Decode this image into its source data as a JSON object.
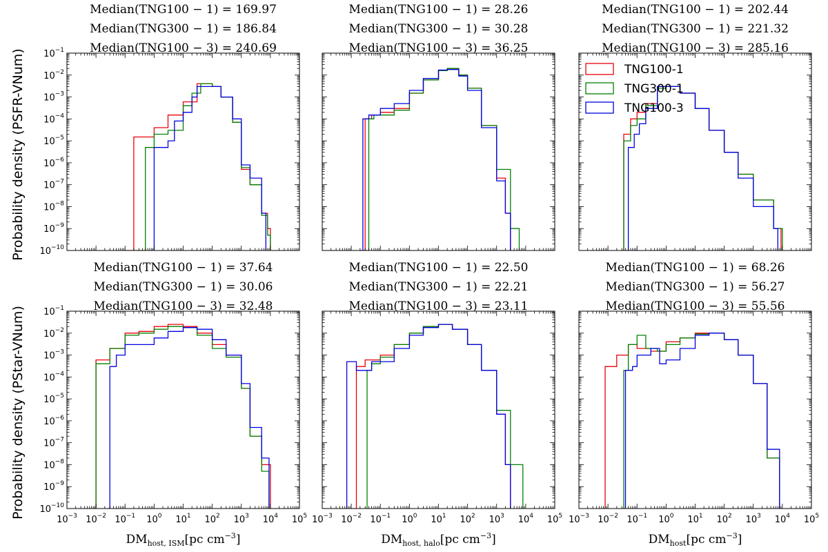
{
  "chart_data": {
    "type": "histogram-step",
    "figure_layout": "2 rows x 3 columns",
    "x_scale": "log",
    "y_scale": "log",
    "xlim": [
      0.001,
      100000
    ],
    "ylim": [
      1e-10,
      0.1
    ],
    "x_tick_labels": [
      "10^-3",
      "10^-2",
      "10^-1",
      "10^0",
      "10^1",
      "10^2",
      "10^3",
      "10^4",
      "10^5"
    ],
    "y_tick_labels": [
      "10^-10",
      "10^-9",
      "10^-8",
      "10^-7",
      "10^-6",
      "10^-5",
      "10^-4",
      "10^-3",
      "10^-2",
      "10^-1"
    ],
    "series_names": [
      "TNG100-1",
      "TNG300-1",
      "TNG100-3"
    ],
    "series_colors": [
      "#e8000b",
      "#008000",
      "#0000e0"
    ],
    "legend": {
      "placement": "top-left of top-right panel",
      "entries": [
        "TNG100-1",
        "TNG300-1",
        "TNG100-3"
      ]
    },
    "row_ylabels": [
      "Probability density (PSFR-VNum)",
      "Probability density (PStar-VNum)"
    ],
    "col_xlabels": [
      {
        "main": "DM",
        "sub": "host, ISM",
        "unit": "[pc cm",
        "unit_exp": "−3",
        "unit_close": "]"
      },
      {
        "main": "DM",
        "sub": "host, halo",
        "unit": "[pc cm",
        "unit_exp": "−3",
        "unit_close": "]"
      },
      {
        "main": "DM",
        "sub": "host",
        "unit": "[pc cm",
        "unit_exp": "−3",
        "unit_close": "]"
      }
    ],
    "panels": [
      {
        "id": "psfr-ism",
        "medians": [
          "Median(TNG100 − 1) = 169.97",
          "Median(TNG300 − 1) = 186.84",
          "Median(TNG100 − 3) = 240.69"
        ],
        "series": [
          {
            "name": "TNG100-1",
            "x": [
              0.1,
              0.2,
              1,
              3,
              10,
              30,
              50,
              100,
              200,
              500,
              1000,
              2000,
              5000,
              8000,
              10000
            ],
            "y": [
              1e-10,
              1.5e-05,
              4e-05,
              0.00015,
              0.0006,
              0.004,
              0.004,
              0.003,
              0.001,
              7e-05,
              5e-07,
              1e-07,
              5e-09,
              1e-09,
              1e-10
            ]
          },
          {
            "name": "TNG300-1",
            "x": [
              0.2,
              0.5,
              1,
              3,
              10,
              20,
              40,
              100,
              200,
              500,
              1000,
              2000,
              5000,
              8000,
              10000
            ],
            "y": [
              1e-10,
              5e-06,
              2e-05,
              3e-05,
              0.0004,
              0.0015,
              0.004,
              0.003,
              0.001,
              7e-05,
              6e-07,
              1e-07,
              4e-09,
              5e-10,
              1e-10
            ]
          },
          {
            "name": "TNG100-3",
            "x": [
              0.8,
              1,
              3,
              5,
              10,
              20,
              30,
              50,
              100,
              200,
              500,
              1000,
              2000,
              5000,
              7000
            ],
            "y": [
              1e-10,
              5e-06,
              1e-05,
              8e-05,
              0.0002,
              0.001,
              0.003,
              0.003,
              0.003,
              0.001,
              0.0001,
              8e-07,
              2e-07,
              5e-09,
              1e-10
            ]
          }
        ]
      },
      {
        "id": "psfr-halo",
        "medians": [
          "Median(TNG100 − 1) = 28.26",
          "Median(TNG300 − 1) = 30.28",
          "Median(TNG100 − 3) = 36.25"
        ],
        "series": [
          {
            "name": "TNG100-1",
            "x": [
              0.025,
              0.03,
              0.05,
              0.1,
              0.3,
              1,
              3,
              10,
              20,
              50,
              100,
              300,
              1000,
              2000,
              3000
            ],
            "y": [
              1e-10,
              0.0001,
              0.00015,
              0.0002,
              0.0003,
              0.0015,
              0.006,
              0.016,
              0.02,
              0.01,
              0.0025,
              5e-05,
              2e-07,
              5e-09,
              1e-10
            ]
          },
          {
            "name": "TNG300-1",
            "x": [
              0.03,
              0.04,
              0.06,
              0.1,
              0.3,
              1,
              3,
              10,
              20,
              50,
              100,
              300,
              1000,
              3000,
              6000
            ],
            "y": [
              1e-10,
              0.0001,
              0.00015,
              0.00015,
              0.00025,
              0.0015,
              0.006,
              0.016,
              0.02,
              0.01,
              0.0025,
              5e-05,
              5e-07,
              1e-09,
              1e-10
            ]
          },
          {
            "name": "TNG100-3",
            "x": [
              0.02,
              0.025,
              0.04,
              0.1,
              0.3,
              1,
              3,
              10,
              20,
              50,
              100,
              300,
              1000,
              2000,
              3000
            ],
            "y": [
              1e-10,
              0.0001,
              0.00015,
              0.0003,
              0.0005,
              0.002,
              0.007,
              0.017,
              0.018,
              0.009,
              0.002,
              4e-05,
              1.5e-07,
              5e-09,
              1e-10
            ]
          }
        ]
      },
      {
        "id": "psfr-host",
        "medians": [
          "Median(TNG100 − 1) = 202.44",
          "Median(TNG300 − 1) = 221.32",
          "Median(TNG100 − 3) = 285.16"
        ],
        "series": [
          {
            "name": "TNG100-1",
            "x": [
              0.03,
              0.035,
              0.06,
              0.1,
              0.2,
              0.5,
              1,
              3,
              10,
              30,
              100,
              300,
              1000,
              5000,
              9000
            ],
            "y": [
              1e-10,
              2e-05,
              0.0001,
              0.0002,
              0.0005,
              0.003,
              0.003,
              0.0015,
              0.0003,
              3e-05,
              3e-06,
              3e-07,
              2e-08,
              1e-09,
              1e-10
            ]
          },
          {
            "name": "TNG300-1",
            "x": [
              0.03,
              0.035,
              0.06,
              0.1,
              0.2,
              0.5,
              1,
              3,
              10,
              30,
              100,
              300,
              1000,
              5000,
              10000
            ],
            "y": [
              1e-10,
              1e-05,
              5e-05,
              0.0001,
              0.0004,
              0.0025,
              0.003,
              0.0015,
              0.0003,
              3e-05,
              3e-06,
              3e-07,
              2e-08,
              1e-09,
              1e-10
            ]
          },
          {
            "name": "TNG100-3",
            "x": [
              0.04,
              0.05,
              0.08,
              0.12,
              0.2,
              0.5,
              1,
              3,
              10,
              30,
              100,
              300,
              1000,
              5000,
              7000
            ],
            "y": [
              1e-10,
              5e-06,
              2e-05,
              6e-05,
              0.0003,
              0.003,
              0.003,
              0.0015,
              0.0003,
              3e-05,
              3e-06,
              2e-07,
              1e-08,
              1e-09,
              1e-10
            ]
          }
        ]
      },
      {
        "id": "pstar-ism",
        "medians": [
          "Median(TNG100 − 1) = 37.64",
          "Median(TNG300 − 1) = 30.06",
          "Median(TNG100 − 3) = 32.48"
        ],
        "series": [
          {
            "name": "TNG100-1",
            "x": [
              0.008,
              0.01,
              0.03,
              0.1,
              0.3,
              1,
              3,
              10,
              30,
              100,
              300,
              1000,
              2000,
              5000,
              10000
            ],
            "y": [
              1e-10,
              0.0006,
              0.002,
              0.01,
              0.012,
              0.02,
              0.025,
              0.02,
              0.01,
              0.003,
              0.001,
              3e-05,
              2e-07,
              1e-08,
              1e-10
            ]
          },
          {
            "name": "TNG300-1",
            "x": [
              0.008,
              0.01,
              0.03,
              0.1,
              0.3,
              1,
              3,
              10,
              30,
              100,
              300,
              1000,
              2000,
              5000,
              9000
            ],
            "y": [
              1e-10,
              0.0004,
              0.002,
              0.008,
              0.01,
              0.015,
              0.02,
              0.018,
              0.008,
              0.002,
              0.0008,
              3e-05,
              2e-07,
              5e-09,
              1e-10
            ]
          },
          {
            "name": "TNG100-3",
            "x": [
              0.025,
              0.03,
              0.05,
              0.1,
              0.3,
              1,
              3,
              10,
              30,
              100,
              300,
              1000,
              2000,
              5000,
              9000
            ],
            "y": [
              1e-10,
              0.0003,
              0.001,
              0.003,
              0.003,
              0.006,
              0.012,
              0.018,
              0.015,
              0.005,
              0.001,
              5e-05,
              5e-07,
              2e-08,
              1e-10
            ]
          }
        ]
      },
      {
        "id": "pstar-halo",
        "medians": [
          "Median(TNG100 − 1) = 22.50",
          "Median(TNG300 − 1) = 22.21",
          "Median(TNG100 − 3) = 23.11"
        ],
        "series": [
          {
            "name": "TNG100-1",
            "x": [
              0.012,
              0.015,
              0.03,
              0.1,
              0.3,
              1,
              3,
              10,
              30,
              100,
              300,
              1000,
              2000,
              3000
            ],
            "y": [
              1e-10,
              0.0003,
              0.0006,
              0.001,
              0.003,
              0.01,
              0.02,
              0.025,
              0.015,
              0.003,
              0.0002,
              2e-06,
              1e-08,
              1e-10
            ]
          },
          {
            "name": "TNG300-1",
            "x": [
              0.03,
              0.035,
              0.05,
              0.1,
              0.3,
              1,
              3,
              10,
              30,
              100,
              300,
              1000,
              3000,
              8000
            ],
            "y": [
              1e-10,
              0.0002,
              0.0004,
              0.0008,
              0.003,
              0.01,
              0.02,
              0.025,
              0.015,
              0.003,
              0.0002,
              3e-06,
              1e-08,
              1e-10
            ]
          },
          {
            "name": "TNG100-3",
            "x": [
              0.006,
              0.007,
              0.015,
              0.05,
              0.3,
              1,
              3,
              10,
              30,
              100,
              300,
              1000,
              2000,
              3000
            ],
            "y": [
              1e-10,
              0.0005,
              0.0002,
              0.0005,
              0.002,
              0.008,
              0.018,
              0.025,
              0.015,
              0.003,
              0.0002,
              2e-06,
              1e-08,
              1e-10
            ]
          }
        ]
      },
      {
        "id": "pstar-host",
        "medians": [
          "Median(TNG100 − 1) = 68.26",
          "Median(TNG300 − 1) = 56.27",
          "Median(TNG100 − 3) = 55.56"
        ],
        "series": [
          {
            "name": "TNG100-1",
            "x": [
              0.007,
              0.008,
              0.02,
              0.05,
              0.1,
              0.3,
              1,
              3,
              10,
              30,
              100,
              300,
              1000,
              3000,
              8000
            ],
            "y": [
              1e-10,
              0.0003,
              0.001,
              0.003,
              0.002,
              0.0015,
              0.004,
              0.006,
              0.01,
              0.01,
              0.005,
              0.001,
              5e-05,
              2e-08,
              1e-10
            ]
          },
          {
            "name": "TNG300-1",
            "x": [
              0.03,
              0.035,
              0.05,
              0.1,
              0.2,
              0.5,
              1,
              3,
              10,
              30,
              100,
              300,
              1000,
              3000,
              8000
            ],
            "y": [
              1e-10,
              0.0002,
              0.003,
              0.008,
              0.002,
              0.0015,
              0.003,
              0.006,
              0.009,
              0.01,
              0.005,
              0.001,
              5e-05,
              2e-08,
              1e-10
            ]
          },
          {
            "name": "TNG100-3",
            "x": [
              0.035,
              0.04,
              0.07,
              0.1,
              0.3,
              0.6,
              1,
              3,
              10,
              30,
              100,
              300,
              1000,
              3000,
              8000
            ],
            "y": [
              1e-10,
              0.0002,
              0.0003,
              0.001,
              0.002,
              0.0004,
              0.0006,
              0.002,
              0.008,
              0.01,
              0.005,
              0.001,
              5e-05,
              5e-08,
              1e-10
            ]
          }
        ]
      }
    ]
  }
}
